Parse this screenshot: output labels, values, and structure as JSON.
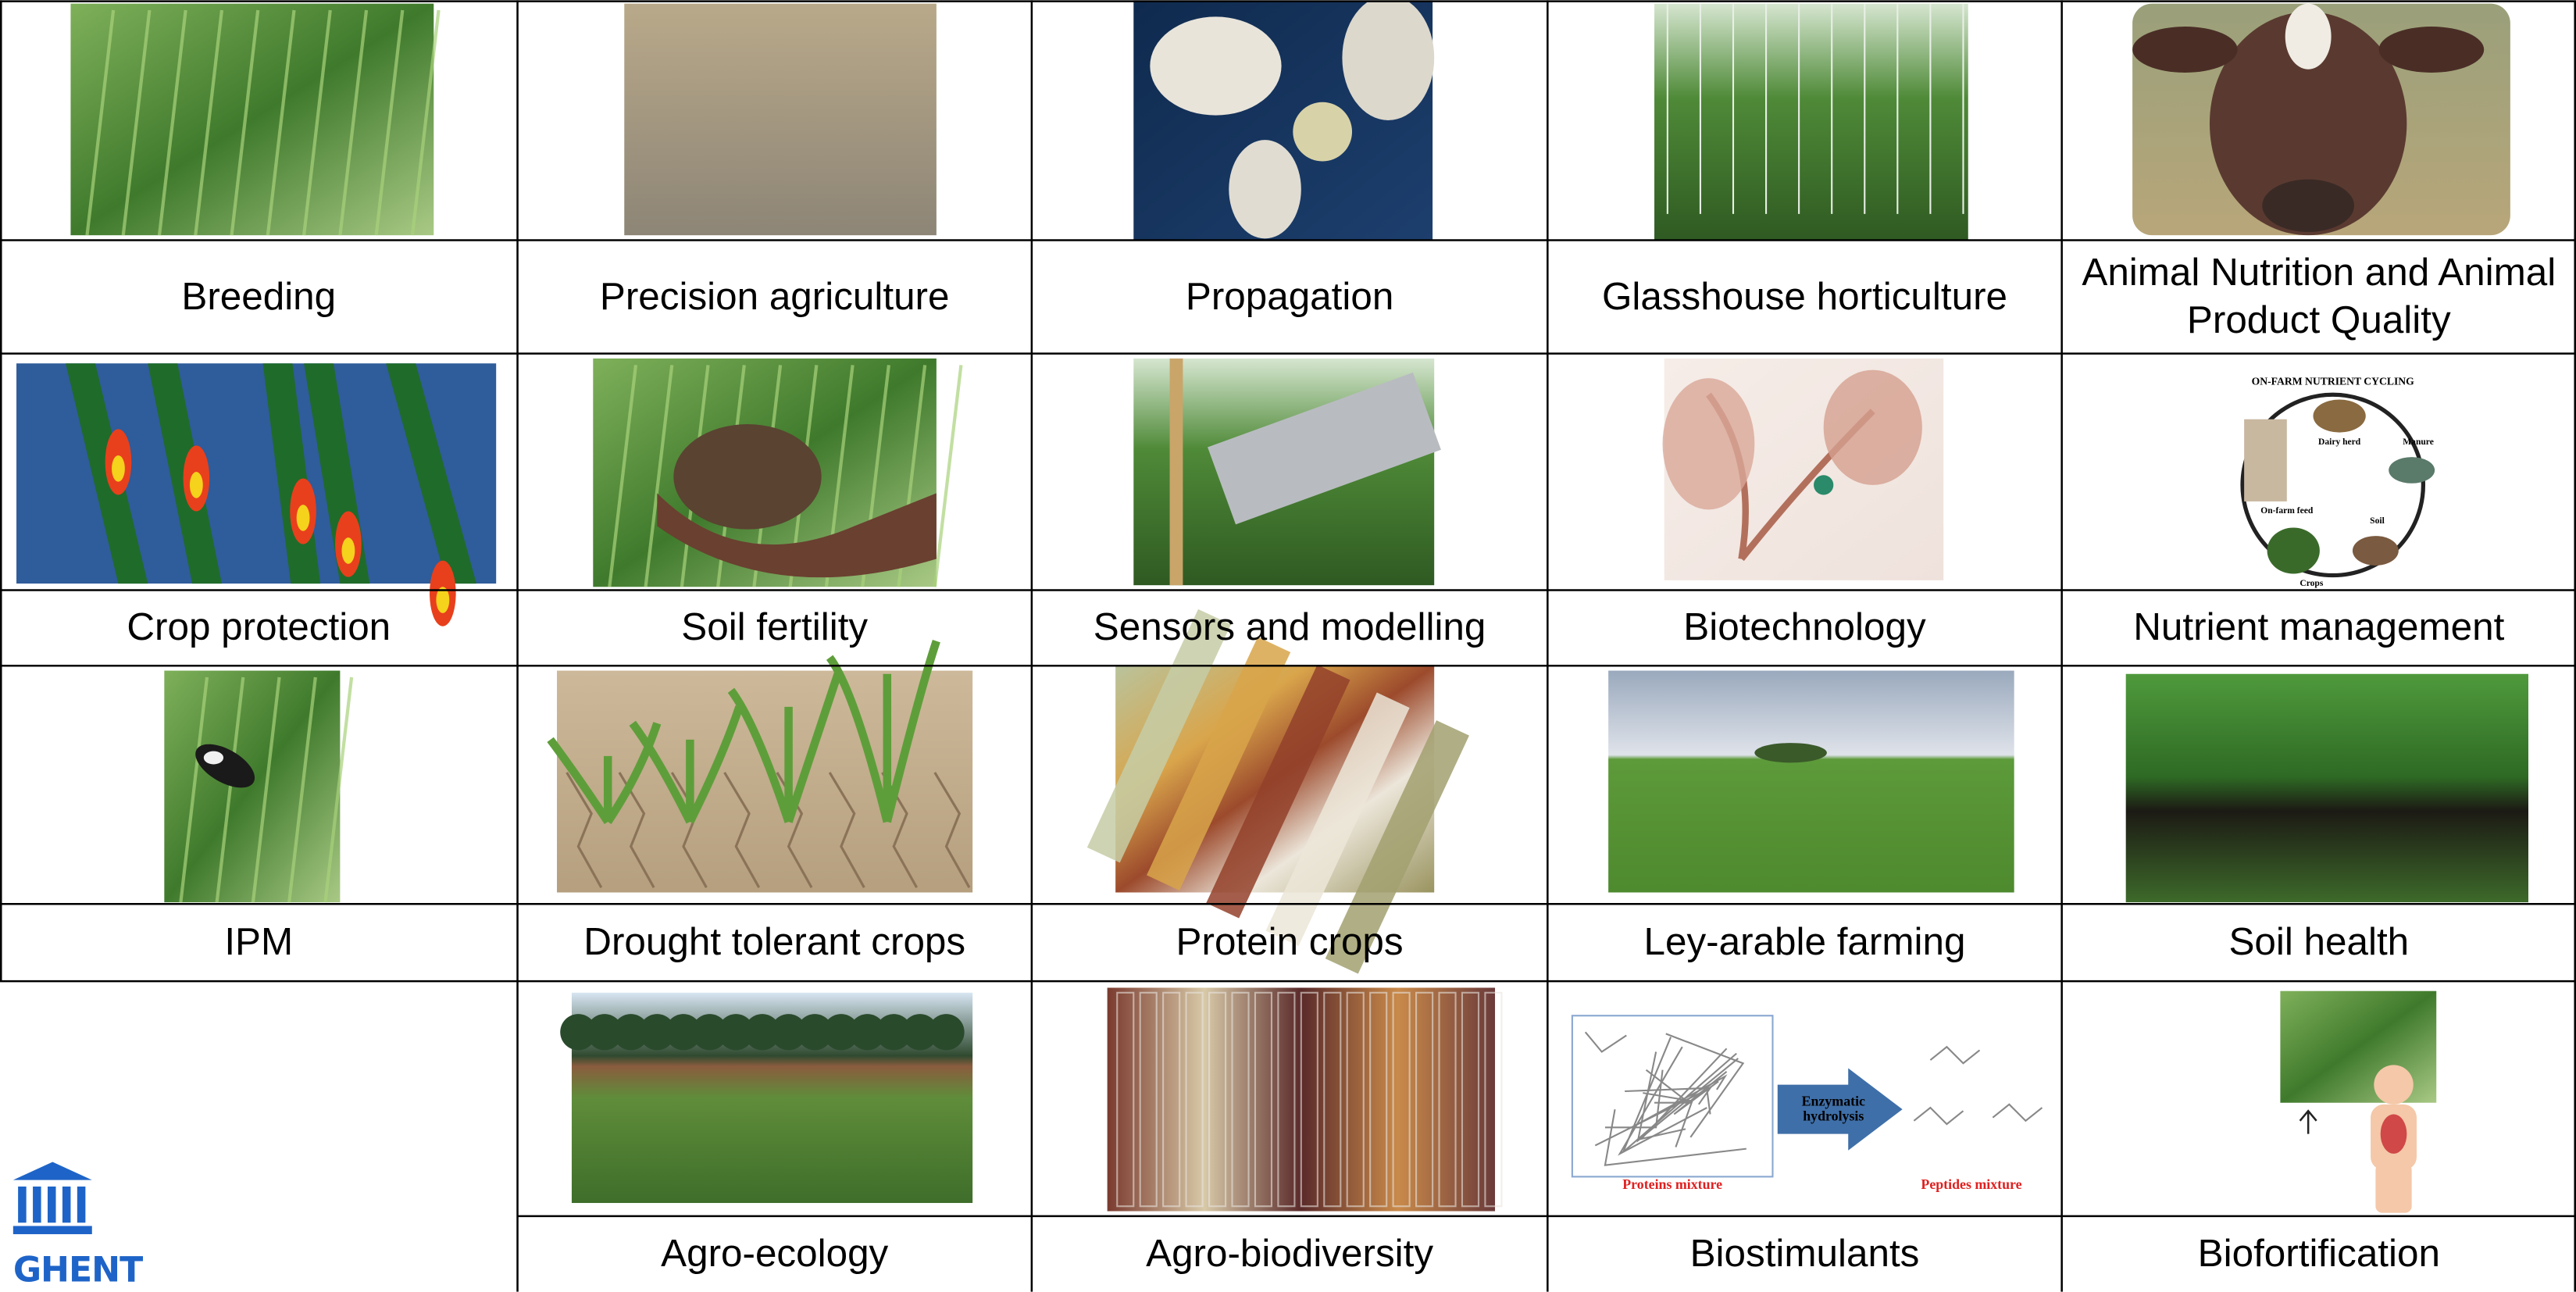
{
  "grid": {
    "rows": [
      [
        "Breeding",
        "Precision agriculture",
        "Propagation",
        "Glasshouse horticulture",
        "Animal Nutrition and Animal Product Quality"
      ],
      [
        "Crop protection",
        "Soil fertility",
        "Sensors and modelling",
        "Biotechnology",
        "Nutrient management"
      ],
      [
        "IPM",
        "Drought tolerant crops",
        "Protein crops",
        "Ley-arable farming",
        "Soil health"
      ],
      [
        "Agro-ecology",
        "Agro-biodiversity",
        "Biostimulants",
        "Biofortification"
      ]
    ]
  },
  "nutrient_cycling": {
    "title": "ON-FARM NUTRIENT CYCLING",
    "labels": [
      "Dairy herd",
      "Manure",
      "Soil",
      "Crops",
      "On-farm feed"
    ]
  },
  "biostimulants": {
    "step": "Enzymatic hydrolysis",
    "input": "Proteins mixture",
    "output": "Peptides mixture"
  },
  "logo": "GHENT"
}
